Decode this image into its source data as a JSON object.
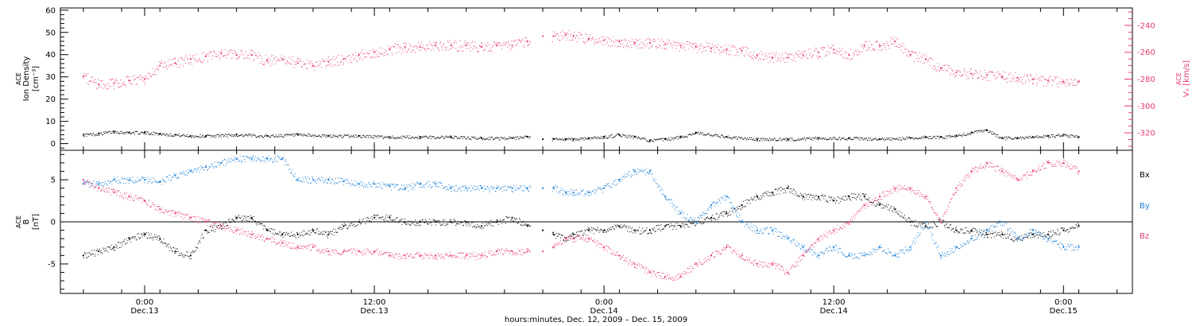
{
  "colors": {
    "axis": "#000000",
    "black": "#000000",
    "red": "#e63a6b",
    "blue": "#1a7fd6"
  },
  "xaxis": {
    "title": "hours:minutes, Dec. 12, 2009 – Dec. 15, 2009",
    "range_hours": [
      -5.5,
      64.5
    ],
    "ticks": [
      {
        "h": 0,
        "time": "0:00",
        "date": "Dec.13"
      },
      {
        "h": 15,
        "time": "12:00",
        "date": "Dec.13"
      },
      {
        "h": 30,
        "time": "0:00",
        "date": "Dec.14"
      },
      {
        "h": 45,
        "time": "12:00",
        "date": "Dec.14"
      },
      {
        "h": 60,
        "time": "0:00",
        "date": "Dec.15"
      }
    ]
  },
  "chart_data": [
    {
      "type": "scatter",
      "ylabel_lines": [
        "ACE",
        "Ion Density",
        "[cm⁻³]"
      ],
      "ylim": [
        -3,
        61
      ],
      "yticks": [
        0,
        10,
        20,
        30,
        40,
        50,
        60
      ],
      "y2label_lines": [
        "ACE",
        "Vₓ [km/s]"
      ],
      "y2lim": [
        -333,
        -227
      ],
      "y2ticks": [
        -240,
        -260,
        -280,
        -300,
        -320
      ],
      "series": [
        {
          "name": "",
          "color": "black",
          "axis": "left",
          "x": [
            -4,
            -3,
            -2,
            -1,
            0,
            1,
            2,
            3,
            4,
            6,
            8,
            10,
            12,
            14,
            16,
            18,
            20,
            22,
            24,
            25,
            26,
            26.7,
            27.5,
            28,
            29,
            30,
            31,
            32,
            33,
            34,
            35,
            36,
            38,
            40,
            42,
            44,
            46,
            48,
            50,
            51,
            52,
            53,
            54,
            55,
            56,
            57,
            58,
            59,
            60,
            61
          ],
          "y": [
            4,
            4.5,
            5.5,
            5,
            5,
            4.5,
            4,
            3.5,
            3.5,
            4,
            3.5,
            4,
            3.5,
            3.5,
            3,
            3,
            3,
            2.5,
            2.5,
            3,
            2,
            2,
            2,
            2,
            2.5,
            3,
            4,
            3,
            1.5,
            2,
            3,
            5,
            3,
            2,
            2,
            2.5,
            2.5,
            2,
            2.5,
            3,
            3,
            3.5,
            5,
            6,
            2.5,
            2.5,
            3,
            3.5,
            4,
            3
          ]
        },
        {
          "name": "",
          "color": "red",
          "axis": "right",
          "x": [
            -4,
            -3,
            -2,
            -1,
            0,
            1,
            2,
            3,
            4,
            5,
            6,
            7,
            8,
            9,
            10,
            11,
            12,
            13,
            14,
            15,
            16,
            17,
            18,
            19,
            20,
            21,
            22,
            23,
            24,
            25,
            26,
            26.7,
            27.5,
            28,
            29,
            30,
            31,
            32,
            33,
            34,
            35,
            36,
            37,
            38,
            39,
            40,
            41,
            42,
            43,
            44,
            45,
            46,
            47,
            48,
            49,
            50,
            51,
            52,
            53,
            54,
            55,
            56,
            57,
            58,
            59,
            60,
            61
          ],
          "y": [
            -278,
            -284,
            -283,
            -281,
            -280,
            -270,
            -268,
            -265,
            -263,
            -261,
            -262,
            -262,
            -266,
            -265,
            -268,
            -270,
            -267,
            -265,
            -262,
            -260,
            -258,
            -256,
            -256,
            -255,
            -255,
            -255,
            -256,
            -255,
            -255,
            -252,
            -248,
            -248,
            -247,
            -248,
            -250,
            -251,
            -252,
            -253,
            -253,
            -254,
            -255,
            -256,
            -257,
            -258,
            -259,
            -262,
            -264,
            -264,
            -262,
            -260,
            -258,
            -262,
            -255,
            -255,
            -252,
            -262,
            -265,
            -272,
            -275,
            -276,
            -277,
            -278,
            -279,
            -280,
            -281,
            -282,
            -282
          ]
        }
      ]
    },
    {
      "type": "scatter",
      "ylabel_lines": [
        "ACE",
        "B",
        "[nT]"
      ],
      "ylim": [
        -8.5,
        8.5
      ],
      "yticks": [
        5,
        0,
        -5
      ],
      "series": [
        {
          "name": "Bx",
          "color": "black",
          "x": [
            -4,
            -3,
            -2,
            -1,
            0,
            1,
            2,
            3,
            4,
            5,
            6,
            7,
            8,
            9,
            10,
            11,
            12,
            13,
            14,
            15,
            16,
            17,
            18,
            19,
            20,
            21,
            22,
            23,
            24,
            25,
            26,
            26.7,
            27.5,
            28,
            29,
            30,
            31,
            32,
            33,
            34,
            35,
            36,
            37,
            38,
            39,
            40,
            41,
            42,
            43,
            44,
            45,
            46,
            47,
            48,
            49,
            50,
            51,
            52,
            53,
            54,
            55,
            56,
            57,
            58,
            59,
            60,
            61
          ],
          "y": [
            -4,
            -3.5,
            -3,
            -2,
            -1.5,
            -2,
            -3.5,
            -4,
            -1,
            -0.5,
            0.5,
            0.5,
            -1,
            -1.5,
            -1.5,
            -1,
            -1.5,
            -0.5,
            0,
            0.5,
            0.5,
            0,
            0,
            0,
            0,
            0,
            -0.5,
            0,
            0.5,
            -0.5,
            -1,
            -1.5,
            -2,
            -1.5,
            -1,
            -1,
            -0.5,
            -1,
            -1,
            -0.5,
            -0.5,
            0,
            0.5,
            1,
            2,
            3,
            3.5,
            4,
            3,
            3,
            2.5,
            3,
            3,
            2,
            1.5,
            0,
            -0.5,
            0,
            -1,
            -1,
            -1.5,
            -1.5,
            -2,
            -1.5,
            -1.5,
            -1,
            -0.5
          ]
        },
        {
          "name": "By",
          "color": "blue",
          "x": [
            -4,
            -3,
            -2,
            -1,
            0,
            1,
            2,
            3,
            4,
            5,
            6,
            7,
            8,
            9,
            10,
            11,
            12,
            13,
            14,
            15,
            16,
            17,
            18,
            19,
            20,
            21,
            22,
            23,
            24,
            25,
            26,
            26.7,
            27.5,
            28,
            29,
            30,
            31,
            32,
            33,
            34,
            35,
            36,
            37,
            38,
            39,
            40,
            41,
            42,
            43,
            44,
            45,
            46,
            47,
            48,
            49,
            50,
            51,
            52,
            53,
            54,
            55,
            56,
            57,
            58,
            59,
            60,
            61
          ],
          "y": [
            4.5,
            4.5,
            5,
            5,
            5,
            4.8,
            5.5,
            6,
            6.5,
            7,
            7.5,
            7.5,
            7.5,
            7.5,
            5,
            5,
            5,
            4.8,
            4.5,
            4.5,
            4.2,
            4,
            4.5,
            4.5,
            4,
            4,
            4,
            4,
            4,
            4,
            4,
            4,
            3.5,
            3.5,
            3.5,
            4,
            5,
            6,
            6,
            3,
            1,
            0,
            2,
            3,
            0,
            -1,
            -1,
            -2,
            -3,
            -4,
            -3,
            -4,
            -4,
            -3,
            -4,
            -3,
            0,
            -4,
            -3,
            -2,
            -1,
            0,
            -2,
            -1,
            -2,
            -3,
            -3
          ]
        },
        {
          "name": "Bz",
          "color": "red",
          "x": [
            -4,
            -3,
            -2,
            -1,
            0,
            1,
            2,
            3,
            4,
            5,
            6,
            7,
            8,
            9,
            10,
            11,
            12,
            13,
            14,
            15,
            16,
            17,
            18,
            19,
            20,
            21,
            22,
            23,
            24,
            25,
            26,
            26.7,
            27.5,
            28,
            29,
            30,
            31,
            32,
            33,
            34,
            35,
            36,
            37,
            38,
            39,
            40,
            41,
            42,
            43,
            44,
            45,
            46,
            47,
            48,
            49,
            50,
            51,
            52,
            53,
            54,
            55,
            56,
            57,
            58,
            59,
            60,
            61
          ],
          "y": [
            5,
            4,
            3.5,
            3,
            2.5,
            1.5,
            1,
            0.5,
            0,
            -0.5,
            -1,
            -1.5,
            -2,
            -2.5,
            -3,
            -3,
            -3.5,
            -3.5,
            -3.5,
            -3.5,
            -4,
            -4,
            -4,
            -4,
            -4,
            -4,
            -4,
            -3.5,
            -3.5,
            -3.5,
            -3.5,
            -3,
            -2,
            -2,
            -2,
            -3,
            -4,
            -5,
            -6,
            -6.5,
            -6.5,
            -5,
            -4,
            -3,
            -4,
            -5,
            -5,
            -6,
            -4,
            -2,
            -1,
            0,
            2,
            3,
            4,
            4,
            3,
            0,
            4,
            6,
            7,
            6,
            5,
            6,
            7,
            7,
            6
          ]
        }
      ]
    }
  ]
}
